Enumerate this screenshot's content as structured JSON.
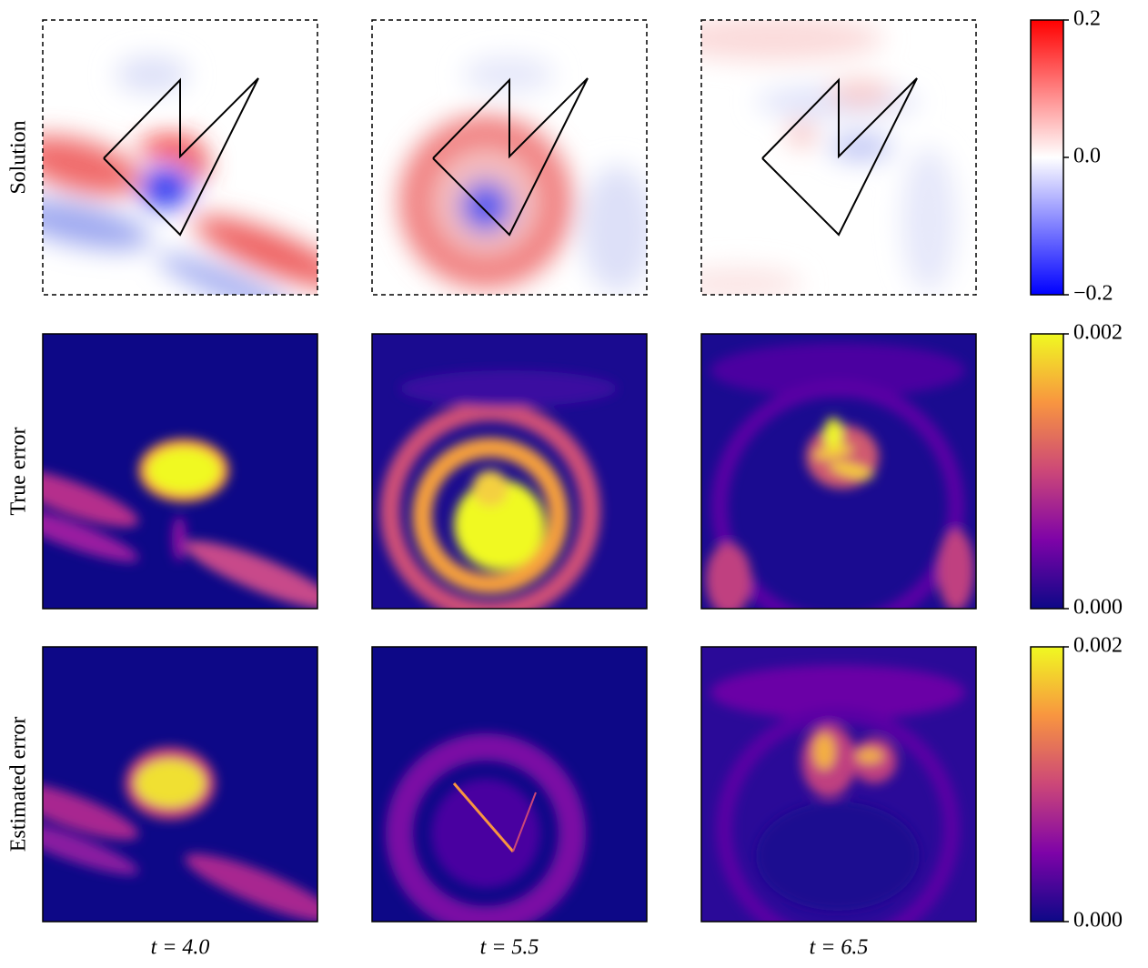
{
  "rows": [
    {
      "label": "Solution",
      "colorbar": {
        "clim": [
          -0.2,
          0.2
        ],
        "ticks": [
          0.2,
          {
            "value": 0,
            "label": "0.0"
          },
          {
            "value": -0.2,
            "label": "−0.2"
          }
        ]
      }
    },
    {
      "label": "True error",
      "colorbar": {
        "clim": [
          0,
          0.002
        ],
        "ticks": [
          0.002,
          {
            "value": 0,
            "label": "0.000"
          }
        ]
      }
    },
    {
      "label": "Estimated error",
      "colorbar": {
        "clim": [
          0,
          0.002
        ],
        "ticks": [
          0.002,
          {
            "value": 0,
            "label": "0.000"
          }
        ]
      }
    }
  ],
  "columns": [
    "t = 4.0",
    "t = 5.5",
    "t = 6.5"
  ]
}
